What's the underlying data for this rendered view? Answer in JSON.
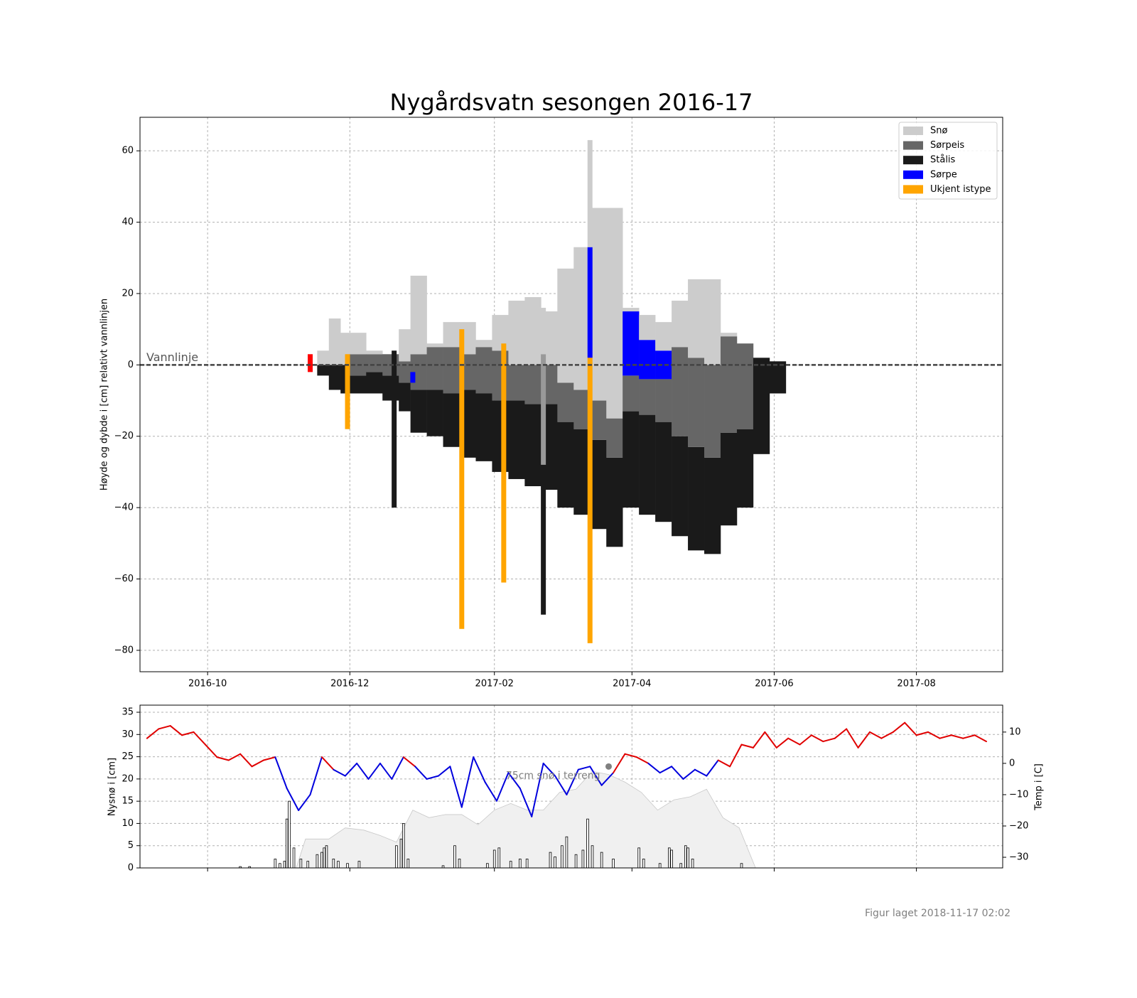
{
  "chart_data": [
    {
      "type": "bar",
      "title": "Nygårdsvatn sesongen 2016-17",
      "y_label": "Høyde og dybde i [cm] relativt vannlinjen",
      "x": [
        "2016-11-17",
        "2016-11-22",
        "2016-11-27",
        "2016-12-01",
        "2016-12-08",
        "2016-12-15",
        "2016-12-22",
        "2016-12-27",
        "2017-01-03",
        "2017-01-10",
        "2017-01-17",
        "2017-01-24",
        "2017-01-31",
        "2017-02-07",
        "2017-02-14",
        "2017-02-21",
        "2017-02-28",
        "2017-03-07",
        "2017-03-14",
        "2017-03-21",
        "2017-03-28",
        "2017-04-04",
        "2017-04-11",
        "2017-04-18",
        "2017-04-25",
        "2017-05-02",
        "2017-05-09",
        "2017-05-16",
        "2017-05-23",
        "2017-05-30"
      ],
      "bottom": [
        -3,
        -7,
        -8,
        -8,
        -8,
        -10,
        -13,
        -19,
        -20,
        -23,
        -26,
        -27,
        -30,
        -32,
        -34,
        -35,
        -40,
        -42,
        -46,
        -51,
        -40,
        -42,
        -44,
        -48,
        -52,
        -53,
        -45,
        -40,
        -25,
        -8
      ],
      "series": [
        {
          "name": "Snø",
          "color": "#cccccc",
          "values": [
            4,
            13,
            9,
            6,
            1,
            0,
            9,
            22,
            1,
            7,
            9,
            2,
            10,
            18,
            19,
            15,
            32,
            40,
            54,
            59,
            1,
            7,
            8,
            13,
            22,
            24,
            1,
            0,
            0,
            0
          ]
        },
        {
          "name": "Sørpeis",
          "color": "#666666",
          "values": [
            0,
            0,
            0,
            6,
            5,
            6,
            6,
            10,
            12,
            13,
            10,
            13,
            14,
            10,
            11,
            11,
            11,
            11,
            11,
            11,
            10,
            10,
            12,
            25,
            25,
            26,
            27,
            24,
            0,
            0
          ]
        },
        {
          "name": "Stålis",
          "color": "#1a1a1a",
          "values": [
            3,
            7,
            8,
            5,
            6,
            7,
            8,
            12,
            13,
            15,
            19,
            19,
            20,
            22,
            23,
            24,
            24,
            24,
            25,
            25,
            27,
            28,
            28,
            28,
            29,
            27,
            26,
            22,
            27,
            9
          ]
        },
        {
          "name": "Sørpe",
          "color": "#0000ff",
          "values": [
            0,
            0,
            0,
            0,
            0,
            0,
            0,
            0,
            0,
            0,
            0,
            0,
            0,
            0,
            0,
            0,
            0,
            0,
            0,
            0,
            18,
            11,
            8,
            0,
            0,
            0,
            0,
            0,
            0,
            0
          ]
        }
      ],
      "measurements": [
        {
          "x": "2016-11-14",
          "bottom": -2,
          "values": [
            5
          ],
          "colors": [
            "#ff0000"
          ]
        },
        {
          "x": "2016-11-30",
          "bottom": -18,
          "values": [
            21
          ],
          "colors": [
            "#ffa500"
          ]
        },
        {
          "x": "2016-12-20",
          "bottom": -40,
          "values": [
            44
          ],
          "colors": [
            "#1a1a1a"
          ]
        },
        {
          "x": "2016-12-28",
          "bottom": -5,
          "values": [
            3
          ],
          "colors": [
            "#0000ff"
          ]
        },
        {
          "x": "2017-01-18",
          "bottom": -74,
          "values": [
            84
          ],
          "colors": [
            "#ffa500"
          ]
        },
        {
          "x": "2017-02-05",
          "bottom": -61,
          "values": [
            67
          ],
          "colors": [
            "#ffa500"
          ]
        },
        {
          "x": "2017-02-22",
          "bottom": -70,
          "values": [
            42,
            31,
            13
          ],
          "colors": [
            "#1a1a1a",
            "#999999",
            "#cccccc"
          ]
        },
        {
          "x": "2017-03-14",
          "bottom": -78,
          "values": [
            80,
            31,
            30
          ],
          "colors": [
            "#ffa500",
            "#0000ff",
            "#cccccc"
          ]
        }
      ],
      "measurement_legend": {
        "name": "Ukjent istype",
        "color": "#ffa500"
      },
      "waterline": {
        "label": "Vannlinje",
        "value": 0
      },
      "xlim": [
        "2016-09-02",
        "2017-09-07"
      ],
      "xticks": [
        "2016-10",
        "2016-12",
        "2017-02",
        "2017-04",
        "2017-06",
        "2017-08"
      ],
      "ylim": [
        -86,
        69.4
      ],
      "yticks": [
        {
          "value": -80,
          "label": "−80"
        },
        {
          "value": -60,
          "label": "−60"
        },
        {
          "value": -40,
          "label": "−40"
        },
        {
          "value": -20,
          "label": "−20"
        },
        0,
        20,
        40,
        60
      ],
      "grid": true,
      "legend": "upper right"
    },
    {
      "type": "line",
      "y_label": "Nysnø i [cm]",
      "y2_label": "Temp i [C]",
      "xlim": [
        "2016-09-02",
        "2017-09-07"
      ],
      "xticks": [
        "2016-10",
        "2016-12",
        "2017-02",
        "2017-04",
        "2017-06",
        "2017-08"
      ],
      "ylim": [
        0,
        36.6
      ],
      "yticks": [
        0,
        5,
        10,
        15,
        20,
        25,
        30,
        35
      ],
      "y2lim": [
        -33.4,
        18.6
      ],
      "y2ticks": [
        {
          "value": -30,
          "label": "−30"
        },
        {
          "value": -20,
          "label": "−20"
        },
        {
          "value": -10,
          "label": "−10"
        },
        0,
        10
      ],
      "grid": true,
      "snow_depth": {
        "color": "#f0f0f0",
        "x": [
          "2016-11-08",
          "2016-11-12",
          "2016-11-22",
          "2016-11-29",
          "2016-12-07",
          "2016-12-14",
          "2016-12-21",
          "2016-12-28",
          "2017-01-04",
          "2017-01-11",
          "2017-01-18",
          "2017-01-25",
          "2017-02-01",
          "2017-02-08",
          "2017-02-15",
          "2017-02-22",
          "2017-03-01",
          "2017-03-08",
          "2017-03-15",
          "2017-03-22",
          "2017-03-29",
          "2017-04-05",
          "2017-04-12",
          "2017-04-19",
          "2017-04-26",
          "2017-05-03",
          "2017-05-10",
          "2017-05-17",
          "2017-05-24"
        ],
        "values": [
          0,
          6.5,
          6.5,
          9,
          8.5,
          7.3,
          5.8,
          13,
          11.3,
          12,
          12,
          9.7,
          13,
          14.5,
          13,
          13,
          17,
          17.7,
          21.7,
          21,
          19.3,
          17,
          13,
          15.3,
          16,
          17.7,
          11.3,
          9,
          0
        ]
      },
      "new_snow": {
        "color": "#ffffff",
        "x": [
          "2016-10-15",
          "2016-10-19",
          "2016-10-30",
          "2016-11-01",
          "2016-11-03",
          "2016-11-04",
          "2016-11-05",
          "2016-11-07",
          "2016-11-10",
          "2016-11-13",
          "2016-11-17",
          "2016-11-19",
          "2016-11-20",
          "2016-11-21",
          "2016-11-24",
          "2016-11-26",
          "2016-11-30",
          "2016-12-05",
          "2016-12-21",
          "2016-12-23",
          "2016-12-24",
          "2016-12-26",
          "2017-01-10",
          "2017-01-15",
          "2017-01-17",
          "2017-01-29",
          "2017-02-01",
          "2017-02-03",
          "2017-02-08",
          "2017-02-12",
          "2017-02-15",
          "2017-02-25",
          "2017-02-27",
          "2017-03-02",
          "2017-03-04",
          "2017-03-08",
          "2017-03-11",
          "2017-03-13",
          "2017-03-15",
          "2017-03-19",
          "2017-03-24",
          "2017-04-04",
          "2017-04-06",
          "2017-04-13",
          "2017-04-17",
          "2017-04-18",
          "2017-04-22",
          "2017-04-24",
          "2017-04-25",
          "2017-04-27",
          "2017-05-18"
        ],
        "values": [
          0.3,
          0.3,
          2,
          1,
          1.5,
          11,
          15,
          4.5,
          2,
          1.5,
          3,
          3.5,
          4.5,
          5,
          2,
          1.5,
          1,
          1.5,
          5,
          6.5,
          10,
          2,
          0.5,
          5,
          2,
          1,
          4,
          4.5,
          1.5,
          2,
          2,
          3.5,
          2.5,
          5,
          7,
          3,
          4,
          11,
          5,
          3.5,
          2,
          4.5,
          2,
          1,
          4.5,
          4,
          1,
          5,
          4.5,
          2,
          1
        ]
      },
      "temperature": {
        "axis": "y2",
        "color_above": "#e00000",
        "color_below": "#0000dd",
        "x": [
          "2016-09-05",
          "2016-09-10",
          "2016-09-15",
          "2016-09-20",
          "2016-09-25",
          "2016-09-30",
          "2016-10-05",
          "2016-10-10",
          "2016-10-15",
          "2016-10-20",
          "2016-10-25",
          "2016-10-30",
          "2016-11-04",
          "2016-11-09",
          "2016-11-14",
          "2016-11-19",
          "2016-11-24",
          "2016-11-29",
          "2016-12-04",
          "2016-12-09",
          "2016-12-14",
          "2016-12-19",
          "2016-12-24",
          "2016-12-29",
          "2017-01-03",
          "2017-01-08",
          "2017-01-13",
          "2017-01-18",
          "2017-01-23",
          "2017-01-28",
          "2017-02-02",
          "2017-02-07",
          "2017-02-12",
          "2017-02-17",
          "2017-02-22",
          "2017-02-27",
          "2017-03-04",
          "2017-03-09",
          "2017-03-14",
          "2017-03-19",
          "2017-03-24",
          "2017-03-29",
          "2017-04-03",
          "2017-04-08",
          "2017-04-13",
          "2017-04-18",
          "2017-04-23",
          "2017-04-28",
          "2017-05-03",
          "2017-05-08",
          "2017-05-13",
          "2017-05-18",
          "2017-05-23",
          "2017-05-28",
          "2017-06-02",
          "2017-06-07",
          "2017-06-12",
          "2017-06-17",
          "2017-06-22",
          "2017-06-27",
          "2017-07-02",
          "2017-07-07",
          "2017-07-12",
          "2017-07-17",
          "2017-07-22",
          "2017-07-27",
          "2017-08-01",
          "2017-08-06",
          "2017-08-11",
          "2017-08-16",
          "2017-08-21",
          "2017-08-26",
          "2017-08-31"
        ],
        "values": [
          8,
          11,
          12,
          9,
          10,
          6,
          2,
          1,
          3,
          -1,
          1,
          2,
          -8,
          -15,
          -10,
          2,
          -2,
          -4,
          0,
          -5,
          0,
          -5,
          2,
          -1,
          -5,
          -4,
          -1,
          -14,
          2,
          -6,
          -12,
          -3,
          -8,
          -17,
          0,
          -4,
          -10,
          -2,
          -1,
          -7,
          -3,
          3,
          2,
          0,
          -3,
          -1,
          -5,
          -2,
          -4,
          1,
          -1,
          6,
          5,
          10,
          5,
          8,
          6,
          9,
          7,
          8,
          11,
          5,
          10,
          8,
          10,
          13,
          9,
          10,
          8,
          9,
          8,
          9,
          7
        ]
      },
      "annotation": {
        "text": "75cm snø i terreng",
        "x": "2017-03-22",
        "y": 22.8,
        "color": "#808080"
      }
    }
  ],
  "footer": "Figur laget 2018-11-17 02:02"
}
